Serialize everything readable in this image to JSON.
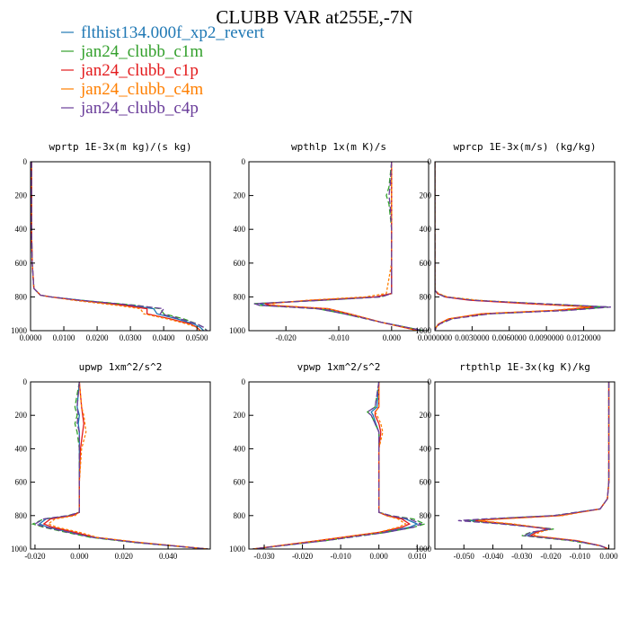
{
  "title": "CLUBB VAR at255E,-7N",
  "legend": {
    "placement": "top-left",
    "entries": [
      {
        "name": "flthist134.000f_xp2_revert",
        "color": "#1f78b4"
      },
      {
        "name": "jan24_clubb_c1m",
        "color": "#33a02c"
      },
      {
        "name": "jan24_clubb_c1p",
        "color": "#e31a1c"
      },
      {
        "name": "jan24_clubb_c4m",
        "color": "#ff7f00"
      },
      {
        "name": "jan24_clubb_c4p",
        "color": "#6a3d9a"
      }
    ]
  },
  "chart_data": [
    {
      "type": "line",
      "title": "wprtp  1E-3x(m kg)/(s kg)",
      "xlim": [
        0,
        0.054
      ],
      "ylim": [
        0,
        1000
      ],
      "y_inverted": true,
      "xticks": [
        0,
        0.01,
        0.02,
        0.03,
        0.04,
        0.05
      ],
      "xtick_labels": [
        "0.0000",
        "0.0100",
        "0.0200",
        "0.0300",
        "0.0400",
        "0.0500"
      ],
      "yticks": [
        0,
        200,
        400,
        600,
        800,
        1000
      ],
      "ytick_labels": [
        "0",
        "200",
        "400",
        "600",
        "800",
        "1000"
      ],
      "y": [
        0,
        200,
        400,
        600,
        750,
        790,
        800,
        820,
        850,
        870,
        900,
        930,
        960,
        980,
        1000
      ],
      "series": [
        {
          "name": "flthist134.000f_xp2_revert",
          "values": [
            0.0003,
            0.0003,
            0.0003,
            0.0005,
            0.001,
            0.003,
            0.006,
            0.015,
            0.03,
            0.037,
            0.038,
            0.044,
            0.049,
            0.051,
            0.052
          ]
        },
        {
          "name": "jan24_clubb_c1m",
          "values": [
            0.0003,
            0.0003,
            0.0003,
            0.0005,
            0.001,
            0.003,
            0.006,
            0.015,
            0.032,
            0.039,
            0.04,
            0.046,
            0.05,
            0.052,
            0.053
          ]
        },
        {
          "name": "jan24_clubb_c1p",
          "values": [
            0.0003,
            0.0003,
            0.0003,
            0.0005,
            0.001,
            0.003,
            0.006,
            0.014,
            0.028,
            0.035,
            0.035,
            0.042,
            0.048,
            0.05,
            0.051
          ]
        },
        {
          "name": "jan24_clubb_c4m",
          "values": [
            0.0003,
            0.0003,
            0.0003,
            0.0005,
            0.001,
            0.003,
            0.006,
            0.013,
            0.026,
            0.033,
            0.034,
            0.041,
            0.047,
            0.05,
            0.051
          ]
        },
        {
          "name": "jan24_clubb_c4p",
          "values": [
            0.0003,
            0.0003,
            0.0003,
            0.0005,
            0.001,
            0.003,
            0.006,
            0.015,
            0.031,
            0.04,
            0.039,
            0.045,
            0.05,
            0.052,
            0.053
          ]
        }
      ]
    },
    {
      "type": "line",
      "title": "wpthlp  1x(m K)/s",
      "xlim": [
        -0.027,
        0.007
      ],
      "ylim": [
        0,
        1000
      ],
      "y_inverted": true,
      "xticks": [
        -0.02,
        -0.01,
        0
      ],
      "xtick_labels": [
        "-0.020",
        "-0.010",
        "0.000"
      ],
      "yticks": [
        0,
        200,
        400,
        600,
        800,
        1000
      ],
      "ytick_labels": [
        "0",
        "200",
        "400",
        "600",
        "800",
        "1000"
      ],
      "y": [
        0,
        150,
        200,
        250,
        400,
        600,
        780,
        800,
        820,
        840,
        850,
        870,
        900,
        950,
        1000
      ],
      "series": [
        {
          "name": "flthist134.000f_xp2_revert",
          "values": [
            0,
            0,
            0,
            0,
            0,
            0,
            0,
            -0.003,
            -0.014,
            -0.025,
            -0.024,
            -0.013,
            -0.008,
            -0.002,
            0.006
          ]
        },
        {
          "name": "jan24_clubb_c1m",
          "values": [
            0,
            -0.0005,
            -0.001,
            -0.0005,
            0,
            0,
            0,
            -0.002,
            -0.013,
            -0.026,
            -0.025,
            -0.014,
            -0.009,
            -0.002,
            0.006
          ]
        },
        {
          "name": "jan24_clubb_c1p",
          "values": [
            0,
            0,
            0,
            0,
            0,
            0,
            0,
            -0.003,
            -0.015,
            -0.024,
            -0.023,
            -0.012,
            -0.008,
            -0.002,
            0.005
          ]
        },
        {
          "name": "jan24_clubb_c4m",
          "values": [
            0,
            0,
            0,
            0,
            0,
            0,
            -0.001,
            -0.005,
            -0.016,
            -0.023,
            -0.022,
            -0.012,
            -0.008,
            -0.002,
            0.005
          ]
        },
        {
          "name": "jan24_clubb_c4p",
          "values": [
            0,
            -0.0003,
            -0.0005,
            -0.0003,
            0,
            0,
            0,
            -0.002,
            -0.013,
            -0.026,
            -0.025,
            -0.014,
            -0.009,
            -0.002,
            0.006
          ]
        }
      ]
    },
    {
      "type": "line",
      "title": "wprcp  1E-3x(m/s) (kg/kg)",
      "xlim": [
        0,
        0.0145
      ],
      "ylim": [
        0,
        1000
      ],
      "y_inverted": true,
      "xticks": [
        0,
        0.003,
        0.006,
        0.009,
        0.012
      ],
      "xtick_labels": [
        "0.0000000",
        "0.0030000",
        "0.0060000",
        "0.0090000",
        "0.0120000"
      ],
      "yticks": [
        0,
        200,
        400,
        600,
        800,
        1000
      ],
      "ytick_labels": [
        "0",
        "200",
        "400",
        "600",
        "800",
        "1000"
      ],
      "y": [
        0,
        200,
        400,
        600,
        760,
        780,
        800,
        820,
        840,
        860,
        880,
        900,
        930,
        960,
        980,
        1000
      ],
      "series": [
        {
          "name": "flthist134.000f_xp2_revert",
          "values": [
            0,
            0,
            0,
            0,
            0,
            0.0002,
            0.0008,
            0.003,
            0.008,
            0.0135,
            0.01,
            0.004,
            0.0012,
            0.0003,
            0.0001,
            0
          ]
        },
        {
          "name": "jan24_clubb_c1m",
          "values": [
            0,
            0,
            0,
            0,
            0,
            0.0002,
            0.0009,
            0.0032,
            0.0085,
            0.014,
            0.0105,
            0.0043,
            0.0013,
            0.0003,
            0.0001,
            0
          ]
        },
        {
          "name": "jan24_clubb_c1p",
          "values": [
            0,
            0,
            0,
            0,
            0,
            0.0002,
            0.0008,
            0.0028,
            0.0075,
            0.0128,
            0.0098,
            0.0038,
            0.0011,
            0.0003,
            0.0001,
            0
          ]
        },
        {
          "name": "jan24_clubb_c4m",
          "values": [
            0,
            0,
            0,
            0,
            0,
            0.0003,
            0.001,
            0.0035,
            0.008,
            0.0125,
            0.0095,
            0.0037,
            0.0011,
            0.0003,
            0.0001,
            0
          ]
        },
        {
          "name": "jan24_clubb_c4p",
          "values": [
            0,
            0,
            0,
            0,
            0,
            0.0002,
            0.0008,
            0.003,
            0.0085,
            0.0142,
            0.0108,
            0.0045,
            0.0014,
            0.0004,
            0.0001,
            0
          ]
        }
      ]
    },
    {
      "type": "line",
      "title": "upwp  1xm^2/s^2",
      "xlim": [
        -0.022,
        0.059
      ],
      "ylim": [
        0,
        1000
      ],
      "y_inverted": true,
      "xticks": [
        -0.02,
        0,
        0.02,
        0.04
      ],
      "xtick_labels": [
        "-0.020",
        "0.000",
        "0.020",
        "0.040"
      ],
      "yticks": [
        0,
        200,
        400,
        600,
        800,
        1000
      ],
      "ytick_labels": [
        "0",
        "200",
        "400",
        "600",
        "800",
        "1000"
      ],
      "y": [
        0,
        150,
        200,
        250,
        300,
        400,
        600,
        780,
        800,
        820,
        850,
        870,
        900,
        930,
        960,
        1000
      ],
      "series": [
        {
          "name": "flthist134.000f_xp2_revert",
          "values": [
            0,
            -0.001,
            0,
            -0.0005,
            0,
            0,
            0,
            0,
            -0.004,
            -0.015,
            -0.018,
            -0.014,
            -0.004,
            0.006,
            0.025,
            0.058
          ]
        },
        {
          "name": "jan24_clubb_c1m",
          "values": [
            0,
            -0.002,
            -0.001,
            -0.002,
            -0.001,
            0,
            0,
            0,
            -0.005,
            -0.016,
            -0.021,
            -0.016,
            -0.006,
            0.005,
            0.024,
            0.058
          ]
        },
        {
          "name": "jan24_clubb_c1p",
          "values": [
            0,
            0.001,
            0.0015,
            0.002,
            0.0015,
            0.0005,
            0,
            0,
            -0.003,
            -0.013,
            -0.016,
            -0.012,
            -0.002,
            0.007,
            0.026,
            0.058
          ]
        },
        {
          "name": "jan24_clubb_c4m",
          "values": [
            0,
            0.001,
            0.002,
            0.0025,
            0.003,
            0.001,
            0,
            0,
            -0.002,
            -0.011,
            -0.014,
            -0.01,
            0,
            0.008,
            0.027,
            0.058
          ]
        },
        {
          "name": "jan24_clubb_c4p",
          "values": [
            0,
            -0.001,
            -0.0005,
            -0.001,
            0,
            0,
            0,
            0,
            -0.005,
            -0.016,
            -0.02,
            -0.015,
            -0.005,
            0.006,
            0.025,
            0.058
          ]
        }
      ]
    },
    {
      "type": "line",
      "title": "vpwp  1xm^2/s^2",
      "xlim": [
        -0.034,
        0.013
      ],
      "ylim": [
        0,
        1000
      ],
      "y_inverted": true,
      "xticks": [
        -0.03,
        -0.02,
        -0.01,
        0,
        0.01
      ],
      "xtick_labels": [
        "-0.030",
        "-0.020",
        "-0.010",
        "0.000",
        "0.010"
      ],
      "yticks": [
        0,
        200,
        400,
        600,
        800,
        1000
      ],
      "ytick_labels": [
        "0",
        "200",
        "400",
        "600",
        "800",
        "1000"
      ],
      "y": [
        0,
        150,
        180,
        200,
        250,
        300,
        400,
        600,
        780,
        800,
        820,
        850,
        870,
        900,
        950,
        1000
      ],
      "series": [
        {
          "name": "flthist134.000f_xp2_revert",
          "values": [
            0,
            -0.0005,
            -0.002,
            -0.0015,
            -0.0008,
            0,
            0,
            0,
            0,
            0.002,
            0.007,
            0.01,
            0.008,
            0.001,
            -0.015,
            -0.033
          ]
        },
        {
          "name": "jan24_clubb_c1m",
          "values": [
            0,
            -0.001,
            -0.003,
            -0.002,
            -0.001,
            0,
            0,
            0,
            0,
            0.003,
            0.009,
            0.012,
            0.009,
            0.002,
            -0.014,
            -0.033
          ]
        },
        {
          "name": "jan24_clubb_c1p",
          "values": [
            0,
            0,
            -0.001,
            -0.001,
            0,
            0.0005,
            0,
            0,
            0,
            0.002,
            0.006,
            0.008,
            0.006,
            0,
            -0.016,
            -0.033
          ]
        },
        {
          "name": "jan24_clubb_c4m",
          "values": [
            0,
            0,
            -0.001,
            -0.0005,
            0.0005,
            0.001,
            0,
            0,
            0,
            0.002,
            0.005,
            0.007,
            0.005,
            0,
            -0.016,
            -0.033
          ]
        },
        {
          "name": "jan24_clubb_c4p",
          "values": [
            0,
            -0.001,
            -0.003,
            -0.002,
            -0.001,
            0,
            0,
            0,
            0,
            0.003,
            0.008,
            0.011,
            0.009,
            0.002,
            -0.014,
            -0.033
          ]
        }
      ]
    },
    {
      "type": "line",
      "title": "rtpthlp  1E-3x(kg K)/kg",
      "xlim": [
        -0.06,
        0.002
      ],
      "ylim": [
        0,
        1000
      ],
      "y_inverted": true,
      "xticks": [
        -0.05,
        -0.04,
        -0.03,
        -0.02,
        -0.01,
        0
      ],
      "xtick_labels": [
        "-0.050",
        "-0.040",
        "-0.030",
        "-0.020",
        "-0.010",
        "0.000"
      ],
      "yticks": [
        0,
        200,
        400,
        600,
        800,
        1000
      ],
      "ytick_labels": [
        "0",
        "200",
        "400",
        "600",
        "800",
        "1000"
      ],
      "y": [
        0,
        200,
        400,
        600,
        700,
        760,
        800,
        820,
        830,
        850,
        880,
        900,
        920,
        950,
        980,
        1000
      ],
      "series": [
        {
          "name": "flthist134.000f_xp2_revert",
          "values": [
            0,
            0,
            0,
            0,
            -0.0005,
            -0.003,
            -0.018,
            -0.04,
            -0.048,
            -0.035,
            -0.02,
            -0.026,
            -0.028,
            -0.012,
            -0.003,
            0
          ]
        },
        {
          "name": "jan24_clubb_c1m",
          "values": [
            0,
            0,
            0,
            0,
            -0.0005,
            -0.003,
            -0.019,
            -0.042,
            -0.05,
            -0.036,
            -0.019,
            -0.027,
            -0.03,
            -0.013,
            -0.003,
            0
          ]
        },
        {
          "name": "jan24_clubb_c1p",
          "values": [
            0,
            0,
            0,
            0,
            -0.0005,
            -0.003,
            -0.017,
            -0.038,
            -0.046,
            -0.034,
            -0.021,
            -0.025,
            -0.027,
            -0.011,
            -0.003,
            0
          ]
        },
        {
          "name": "jan24_clubb_c4m",
          "values": [
            0,
            0,
            0,
            0,
            -0.0005,
            -0.003,
            -0.016,
            -0.037,
            -0.045,
            -0.033,
            -0.02,
            -0.024,
            -0.026,
            -0.011,
            -0.003,
            0
          ]
        },
        {
          "name": "jan24_clubb_c4p",
          "values": [
            0,
            0,
            0,
            0,
            -0.0005,
            -0.003,
            -0.019,
            -0.043,
            -0.052,
            -0.037,
            -0.02,
            -0.027,
            -0.029,
            -0.012,
            -0.003,
            0
          ]
        }
      ]
    }
  ]
}
